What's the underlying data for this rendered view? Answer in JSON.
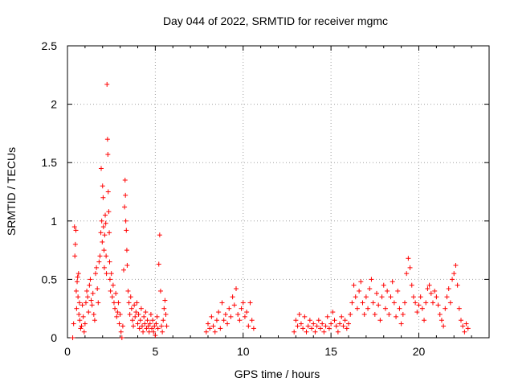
{
  "chart_data": {
    "type": "scatter",
    "title": "Day 044 of 2022, SRMTID for receiver mgmc",
    "xlabel": "GPS time / hours",
    "ylabel": "SRMTID / TECUs",
    "xlim": [
      0,
      24
    ],
    "ylim": [
      0,
      2.5
    ],
    "x_ticks": [
      0,
      5,
      10,
      15,
      20
    ],
    "x_tick_labels": [
      "0",
      "5",
      "10",
      "15",
      "20"
    ],
    "y_ticks": [
      0,
      0.5,
      1,
      1.5,
      2,
      2.5
    ],
    "y_tick_labels": [
      "0",
      "0.5",
      "1",
      "1.5",
      "2",
      "2.5"
    ],
    "grid": true,
    "marker": "+",
    "color": "#ff0000",
    "series": [
      {
        "points": [
          [
            0.3,
            0.0
          ],
          [
            0.35,
            0.12
          ],
          [
            0.4,
            0.95
          ],
          [
            0.42,
            0.7
          ],
          [
            0.45,
            0.8
          ],
          [
            0.48,
            0.92
          ],
          [
            0.5,
            0.4
          ],
          [
            0.52,
            0.25
          ],
          [
            0.55,
            0.48
          ],
          [
            0.58,
            0.52
          ],
          [
            0.6,
            0.35
          ],
          [
            0.63,
            0.55
          ],
          [
            0.65,
            0.2
          ],
          [
            0.68,
            0.3
          ],
          [
            0.7,
            0.15
          ],
          [
            0.75,
            0.08
          ],
          [
            0.8,
            0.1
          ],
          [
            0.85,
            0.28
          ],
          [
            0.9,
            0.18
          ],
          [
            0.95,
            0.05
          ],
          [
            1.0,
            0.12
          ],
          [
            1.05,
            0.3
          ],
          [
            1.1,
            0.4
          ],
          [
            1.15,
            0.35
          ],
          [
            1.2,
            0.22
          ],
          [
            1.25,
            0.45
          ],
          [
            1.3,
            0.5
          ],
          [
            1.35,
            0.32
          ],
          [
            1.4,
            0.28
          ],
          [
            1.45,
            0.38
          ],
          [
            1.5,
            0.2
          ],
          [
            1.55,
            0.15
          ],
          [
            1.6,
            0.55
          ],
          [
            1.65,
            0.6
          ],
          [
            1.7,
            0.42
          ],
          [
            1.75,
            0.3
          ],
          [
            1.8,
            0.65
          ],
          [
            1.85,
            0.7
          ],
          [
            1.9,
            0.9
          ],
          [
            1.92,
            1.45
          ],
          [
            1.95,
            1.0
          ],
          [
            1.98,
            0.82
          ],
          [
            2.0,
            1.3
          ],
          [
            2.03,
            1.2
          ],
          [
            2.05,
            0.95
          ],
          [
            2.08,
            0.75
          ],
          [
            2.1,
            0.6
          ],
          [
            2.12,
            0.88
          ],
          [
            2.15,
            1.05
          ],
          [
            2.18,
            0.98
          ],
          [
            2.2,
            0.7
          ],
          [
            2.22,
            0.55
          ],
          [
            2.25,
            2.17
          ],
          [
            2.28,
            1.7
          ],
          [
            2.3,
            1.57
          ],
          [
            2.32,
            1.25
          ],
          [
            2.35,
            1.08
          ],
          [
            2.38,
            0.9
          ],
          [
            2.4,
            0.65
          ],
          [
            2.42,
            0.5
          ],
          [
            2.45,
            0.4
          ],
          [
            2.5,
            0.55
          ],
          [
            2.55,
            0.35
          ],
          [
            2.6,
            0.45
          ],
          [
            2.65,
            0.3
          ],
          [
            2.7,
            0.25
          ],
          [
            2.75,
            0.38
          ],
          [
            2.8,
            0.18
          ],
          [
            2.85,
            0.22
          ],
          [
            2.9,
            0.3
          ],
          [
            2.95,
            0.12
          ],
          [
            3.0,
            0.2
          ],
          [
            3.05,
            0.05
          ],
          [
            3.1,
            0.0
          ],
          [
            3.15,
            0.1
          ],
          [
            3.2,
            0.58
          ],
          [
            3.25,
            1.12
          ],
          [
            3.28,
            1.35
          ],
          [
            3.3,
            1.22
          ],
          [
            3.32,
            1.0
          ],
          [
            3.35,
            0.92
          ],
          [
            3.38,
            0.75
          ],
          [
            3.4,
            0.62
          ],
          [
            3.45,
            0.4
          ],
          [
            3.5,
            0.3
          ],
          [
            3.55,
            0.2
          ],
          [
            3.6,
            0.35
          ],
          [
            3.65,
            0.25
          ],
          [
            3.7,
            0.15
          ],
          [
            3.75,
            0.1
          ],
          [
            3.8,
            0.28
          ],
          [
            3.85,
            0.18
          ],
          [
            3.9,
            0.22
          ],
          [
            3.95,
            0.3
          ],
          [
            4.0,
            0.12
          ],
          [
            4.05,
            0.2
          ],
          [
            4.1,
            0.08
          ],
          [
            4.15,
            0.15
          ],
          [
            4.2,
            0.25
          ],
          [
            4.25,
            0.1
          ],
          [
            4.3,
            0.05
          ],
          [
            4.35,
            0.18
          ],
          [
            4.4,
            0.12
          ],
          [
            4.45,
            0.22
          ],
          [
            4.5,
            0.08
          ],
          [
            4.55,
            0.15
          ],
          [
            4.6,
            0.1
          ],
          [
            4.65,
            0.05
          ],
          [
            4.7,
            0.12
          ],
          [
            4.75,
            0.2
          ],
          [
            4.8,
            0.08
          ],
          [
            4.85,
            0.15
          ],
          [
            4.9,
            0.05
          ],
          [
            4.95,
            0.1
          ],
          [
            5.0,
            0.02
          ],
          [
            5.05,
            0.12
          ],
          [
            5.1,
            0.18
          ],
          [
            5.15,
            0.08
          ],
          [
            5.2,
            0.63
          ],
          [
            5.25,
            0.88
          ],
          [
            5.3,
            0.4
          ],
          [
            5.35,
            0.1
          ],
          [
            5.4,
            0.05
          ],
          [
            5.45,
            0.15
          ],
          [
            5.5,
            0.25
          ],
          [
            5.55,
            0.32
          ],
          [
            5.6,
            0.2
          ],
          [
            5.65,
            0.1
          ],
          [
            7.9,
            0.05
          ],
          [
            8.0,
            0.12
          ],
          [
            8.1,
            0.08
          ],
          [
            8.2,
            0.18
          ],
          [
            8.3,
            0.1
          ],
          [
            8.4,
            0.05
          ],
          [
            8.5,
            0.15
          ],
          [
            8.6,
            0.22
          ],
          [
            8.7,
            0.08
          ],
          [
            8.8,
            0.3
          ],
          [
            8.9,
            0.15
          ],
          [
            9.0,
            0.2
          ],
          [
            9.1,
            0.12
          ],
          [
            9.2,
            0.25
          ],
          [
            9.3,
            0.18
          ],
          [
            9.4,
            0.35
          ],
          [
            9.5,
            0.28
          ],
          [
            9.6,
            0.42
          ],
          [
            9.7,
            0.2
          ],
          [
            9.8,
            0.15
          ],
          [
            9.9,
            0.25
          ],
          [
            10.0,
            0.3
          ],
          [
            10.1,
            0.18
          ],
          [
            10.2,
            0.22
          ],
          [
            10.3,
            0.1
          ],
          [
            10.4,
            0.3
          ],
          [
            10.5,
            0.15
          ],
          [
            10.6,
            0.08
          ],
          [
            12.9,
            0.05
          ],
          [
            13.0,
            0.15
          ],
          [
            13.1,
            0.1
          ],
          [
            13.2,
            0.2
          ],
          [
            13.3,
            0.12
          ],
          [
            13.4,
            0.08
          ],
          [
            13.5,
            0.18
          ],
          [
            13.6,
            0.05
          ],
          [
            13.7,
            0.1
          ],
          [
            13.8,
            0.15
          ],
          [
            13.9,
            0.08
          ],
          [
            14.0,
            0.12
          ],
          [
            14.1,
            0.05
          ],
          [
            14.2,
            0.1
          ],
          [
            14.3,
            0.15
          ],
          [
            14.4,
            0.08
          ],
          [
            14.5,
            0.12
          ],
          [
            14.6,
            0.05
          ],
          [
            14.7,
            0.1
          ],
          [
            14.8,
            0.18
          ],
          [
            14.9,
            0.08
          ],
          [
            15.0,
            0.12
          ],
          [
            15.1,
            0.22
          ],
          [
            15.2,
            0.15
          ],
          [
            15.3,
            0.1
          ],
          [
            15.4,
            0.05
          ],
          [
            15.5,
            0.12
          ],
          [
            15.6,
            0.18
          ],
          [
            15.7,
            0.1
          ],
          [
            15.8,
            0.15
          ],
          [
            15.9,
            0.08
          ],
          [
            16.0,
            0.12
          ],
          [
            16.1,
            0.2
          ],
          [
            16.2,
            0.3
          ],
          [
            16.3,
            0.45
          ],
          [
            16.4,
            0.35
          ],
          [
            16.5,
            0.25
          ],
          [
            16.6,
            0.4
          ],
          [
            16.7,
            0.48
          ],
          [
            16.8,
            0.3
          ],
          [
            16.9,
            0.2
          ],
          [
            17.0,
            0.35
          ],
          [
            17.1,
            0.25
          ],
          [
            17.2,
            0.42
          ],
          [
            17.3,
            0.5
          ],
          [
            17.4,
            0.3
          ],
          [
            17.5,
            0.2
          ],
          [
            17.6,
            0.38
          ],
          [
            17.7,
            0.28
          ],
          [
            17.8,
            0.15
          ],
          [
            17.9,
            0.35
          ],
          [
            18.0,
            0.45
          ],
          [
            18.1,
            0.25
          ],
          [
            18.2,
            0.4
          ],
          [
            18.3,
            0.2
          ],
          [
            18.4,
            0.35
          ],
          [
            18.5,
            0.48
          ],
          [
            18.6,
            0.3
          ],
          [
            18.7,
            0.18
          ],
          [
            18.8,
            0.4
          ],
          [
            18.9,
            0.25
          ],
          [
            19.0,
            0.12
          ],
          [
            19.1,
            0.2
          ],
          [
            19.2,
            0.3
          ],
          [
            19.3,
            0.55
          ],
          [
            19.4,
            0.68
          ],
          [
            19.5,
            0.6
          ],
          [
            19.6,
            0.45
          ],
          [
            19.7,
            0.35
          ],
          [
            19.8,
            0.3
          ],
          [
            19.9,
            0.22
          ],
          [
            20.0,
            0.28
          ],
          [
            20.1,
            0.35
          ],
          [
            20.2,
            0.25
          ],
          [
            20.3,
            0.15
          ],
          [
            20.4,
            0.3
          ],
          [
            20.5,
            0.42
          ],
          [
            20.6,
            0.45
          ],
          [
            20.7,
            0.38
          ],
          [
            20.8,
            0.3
          ],
          [
            20.9,
            0.4
          ],
          [
            21.0,
            0.35
          ],
          [
            21.1,
            0.28
          ],
          [
            21.2,
            0.2
          ],
          [
            21.3,
            0.15
          ],
          [
            21.4,
            0.1
          ],
          [
            21.5,
            0.25
          ],
          [
            21.6,
            0.35
          ],
          [
            21.7,
            0.42
          ],
          [
            21.8,
            0.3
          ],
          [
            21.9,
            0.5
          ],
          [
            22.0,
            0.55
          ],
          [
            22.1,
            0.62
          ],
          [
            22.2,
            0.45
          ],
          [
            22.3,
            0.25
          ],
          [
            22.4,
            0.15
          ],
          [
            22.5,
            0.1
          ],
          [
            22.6,
            0.05
          ],
          [
            22.7,
            0.12
          ],
          [
            22.8,
            0.08
          ]
        ]
      }
    ]
  }
}
